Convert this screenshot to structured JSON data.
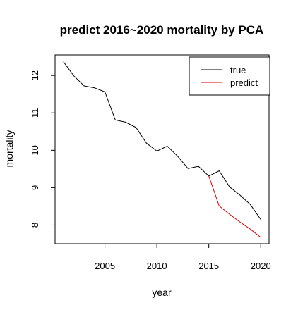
{
  "chart_data": {
    "type": "line",
    "title": "predict 2016~2020 mortality by PCA",
    "xlabel": "year",
    "ylabel": "mortality",
    "xlim": [
      2000.2,
      2020.8
    ],
    "ylim": [
      7.5,
      12.55
    ],
    "x_ticks": [
      2005,
      2010,
      2015,
      2020
    ],
    "y_ticks": [
      8,
      9,
      10,
      11,
      12
    ],
    "grid": false,
    "legend_position": "top-right",
    "series": [
      {
        "name": "true",
        "color": "#000000",
        "x": [
          2001,
          2002,
          2003,
          2004,
          2005,
          2006,
          2007,
          2008,
          2009,
          2010,
          2011,
          2012,
          2013,
          2014,
          2015,
          2016,
          2017,
          2018,
          2019,
          2020
        ],
        "y": [
          12.37,
          11.99,
          11.72,
          11.67,
          11.56,
          10.81,
          10.75,
          10.61,
          10.19,
          9.98,
          10.11,
          9.84,
          9.51,
          9.57,
          9.31,
          9.45,
          9.02,
          8.8,
          8.55,
          8.15
        ]
      },
      {
        "name": "predict",
        "color": "#df0000",
        "x": [
          2015,
          2016,
          2017,
          2018,
          2019,
          2020
        ],
        "y": [
          9.31,
          8.51,
          8.29,
          8.08,
          7.89,
          7.67
        ]
      }
    ]
  }
}
